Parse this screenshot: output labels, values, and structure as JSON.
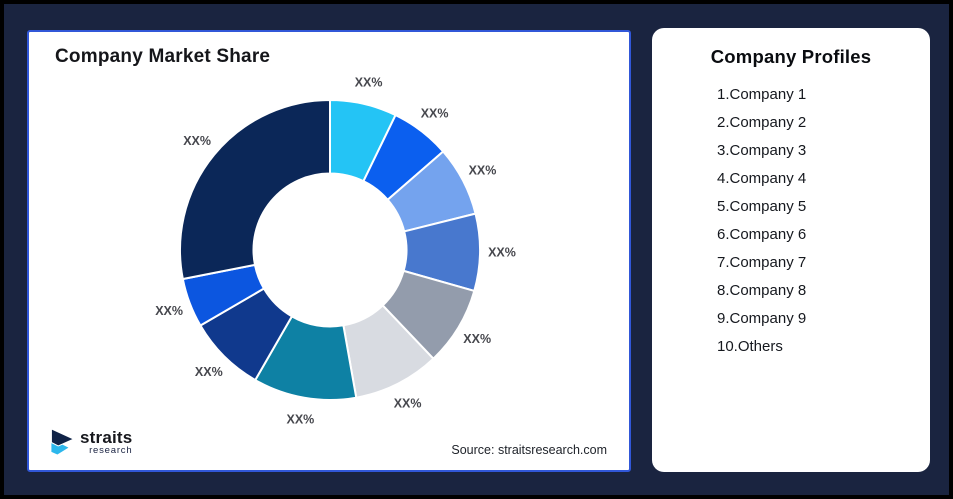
{
  "frame": {
    "background_color": "#1A2440",
    "border_color": "#000000"
  },
  "chart_panel": {
    "title": "Company Market Share",
    "source": "Source: straitsresearch.com",
    "border_color": "#3157D8",
    "logo": {
      "name": "straits",
      "sub": "research",
      "mark_navy": "#102347",
      "mark_cyan": "#2CB7EC"
    }
  },
  "chart_data": {
    "type": "pie",
    "title": "Company Market Share",
    "donut": true,
    "start_angle_deg": 0,
    "direction": "clockwise",
    "inner_radius_ratio": 0.51,
    "legend_position": "none",
    "data_label_text": "XX%",
    "note": "All slice data labels show placeholder text XX%; percentages below are estimated from arc angles",
    "slices": [
      {
        "name": "Company 1",
        "label": "XX%",
        "value_pct_est": 7.2,
        "color": "#24C4F5"
      },
      {
        "name": "Company 2",
        "label": "XX%",
        "value_pct_est": 6.4,
        "color": "#0B5FEF"
      },
      {
        "name": "Company 3",
        "label": "XX%",
        "value_pct_est": 7.5,
        "color": "#74A3EE"
      },
      {
        "name": "Company 4",
        "label": "XX%",
        "value_pct_est": 8.3,
        "color": "#4878CE"
      },
      {
        "name": "Company 5",
        "label": "XX%",
        "value_pct_est": 8.5,
        "color": "#939CAC"
      },
      {
        "name": "Company 6",
        "label": "XX%",
        "value_pct_est": 9.3,
        "color": "#D8DBE1"
      },
      {
        "name": "Company 7",
        "label": "XX%",
        "value_pct_est": 11.1,
        "color": "#0E81A4"
      },
      {
        "name": "Company 8",
        "label": "XX%",
        "value_pct_est": 8.3,
        "color": "#10398D"
      },
      {
        "name": "Company 9",
        "label": "XX%",
        "value_pct_est": 5.3,
        "color": "#0C56E0"
      },
      {
        "name": "Others",
        "label": "XX%",
        "value_pct_est": 28.1,
        "color": "#0B2758"
      }
    ]
  },
  "profiles_panel": {
    "title": "Company Profiles",
    "items": [
      "1.Company 1",
      "2.Company 2",
      "3.Company 3",
      "4.Company 4",
      "5.Company 5",
      "6.Company 6",
      "7.Company 7",
      "8.Company 8",
      "9.Company 9",
      "10.Others"
    ]
  }
}
